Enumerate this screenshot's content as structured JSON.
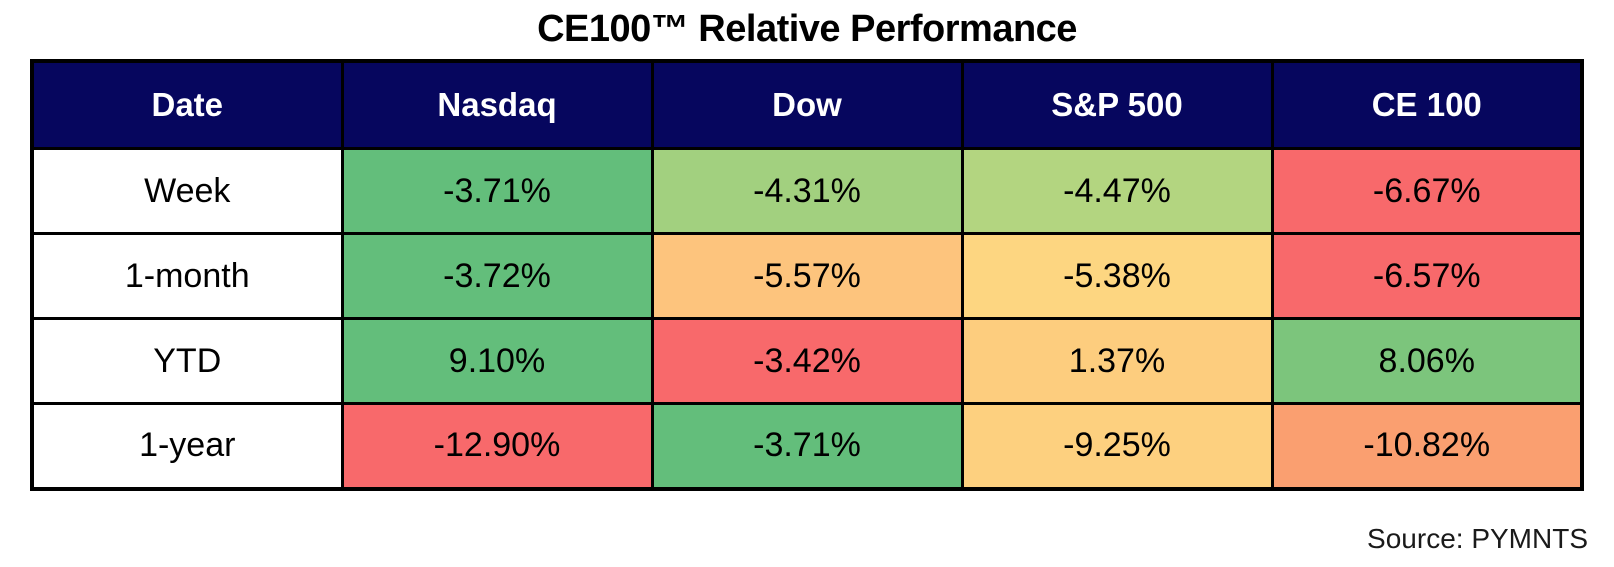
{
  "title": "CE100™ Relative Performance",
  "source": "Source: PYMNTS",
  "colors": {
    "header_bg": "#06065E",
    "header_text": "#FFFFFF",
    "border": "#000000",
    "green_max": "#63BE7B",
    "red_min": "#F8696B"
  },
  "chart_data": {
    "type": "table",
    "title": "CE100™ Relative Performance",
    "columns": [
      "Date",
      "Nasdaq",
      "Dow",
      "S&P 500",
      "CE 100"
    ],
    "rows": [
      {
        "label": "Week",
        "cells": [
          {
            "value": "-3.71%",
            "bg": "#63BE7B"
          },
          {
            "value": "-4.31%",
            "bg": "#A2D07F"
          },
          {
            "value": "-4.47%",
            "bg": "#B3D580"
          },
          {
            "value": "-6.67%",
            "bg": "#F8696B"
          }
        ]
      },
      {
        "label": "1-month",
        "cells": [
          {
            "value": "-3.72%",
            "bg": "#63BE7B"
          },
          {
            "value": "-5.57%",
            "bg": "#FDC47D"
          },
          {
            "value": "-5.38%",
            "bg": "#FDD681"
          },
          {
            "value": "-6.57%",
            "bg": "#F8696B"
          }
        ]
      },
      {
        "label": "YTD",
        "cells": [
          {
            "value": "9.10%",
            "bg": "#63BE7B"
          },
          {
            "value": "-3.42%",
            "bg": "#F8696B"
          },
          {
            "value": "1.37%",
            "bg": "#FDCD7E"
          },
          {
            "value": "8.06%",
            "bg": "#7CC57C"
          }
        ]
      },
      {
        "label": "1-year",
        "cells": [
          {
            "value": "-12.90%",
            "bg": "#F8696B"
          },
          {
            "value": "-3.71%",
            "bg": "#63BE7B"
          },
          {
            "value": "-9.25%",
            "bg": "#FDD07F"
          },
          {
            "value": "-10.82%",
            "bg": "#FA9F70"
          }
        ]
      }
    ],
    "note": "Source: PYMNTS",
    "color_scale": "per-row 3-color scale: row max = green, row midpoint = yellow, row min = red"
  }
}
